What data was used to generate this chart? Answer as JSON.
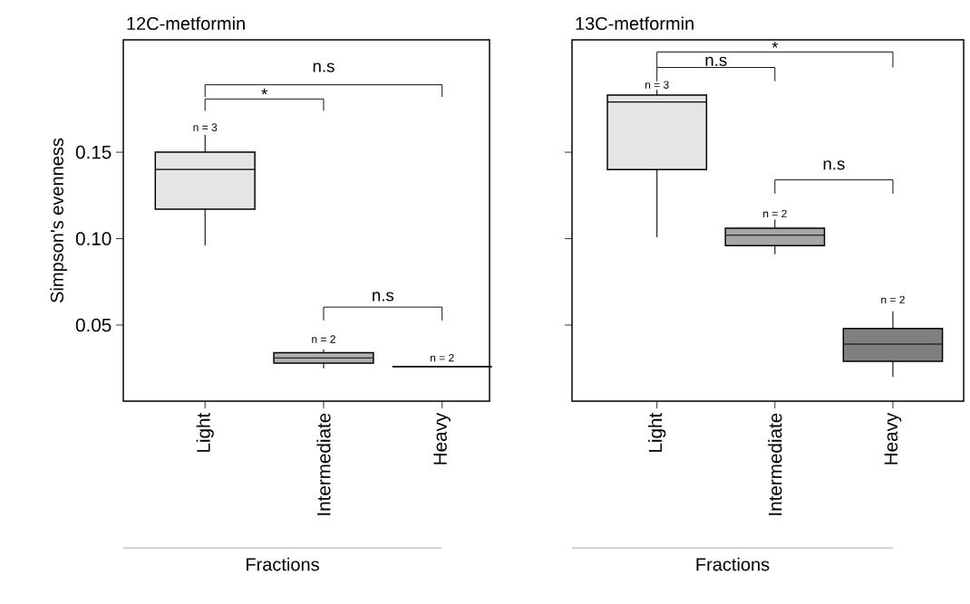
{
  "chart_data": [
    {
      "type": "box",
      "title": "12C-metformin",
      "ylabel": "Simpson's evenness",
      "xlabel": "Fractions",
      "categories": [
        "Light",
        "Intermediate",
        "Heavy"
      ],
      "colors": [
        "#e5e5e5",
        "#b0b0b0",
        "#000000"
      ],
      "boxes": [
        {
          "low": 0.096,
          "q1": 0.117,
          "median": 0.14,
          "q3": 0.15,
          "high": 0.16
        },
        {
          "low": 0.025,
          "q1": 0.028,
          "median": 0.031,
          "q3": 0.034,
          "high": 0.036
        },
        {
          "low": 0.026,
          "q1": 0.026,
          "median": 0.026,
          "q3": 0.026,
          "high": 0.026
        }
      ],
      "ylim": [
        0.006,
        0.215
      ],
      "yticks": [
        0.05,
        {
          "value": 0.1,
          "label": "0.10"
        },
        0.15
      ],
      "annotations": [
        "n.s",
        "*",
        "n.s",
        "n = 3",
        "n = 2",
        "n = 2"
      ]
    },
    {
      "type": "box",
      "title": "13C-metformin",
      "xlabel": "Fractions",
      "categories": [
        "Light",
        "Intermediate",
        "Heavy"
      ],
      "colors": [
        "#e5e5e5",
        "#a6a6a6",
        "#808080"
      ],
      "boxes": [
        {
          "low": 0.101,
          "q1": 0.14,
          "median": 0.179,
          "q3": 0.183,
          "high": 0.186
        },
        {
          "low": 0.091,
          "q1": 0.096,
          "median": 0.102,
          "q3": 0.106,
          "high": 0.111
        },
        {
          "low": 0.02,
          "q1": 0.029,
          "median": 0.039,
          "q3": 0.048,
          "high": 0.058
        }
      ],
      "ylim": [
        0.006,
        0.215
      ],
      "yticks": [
        0.05,
        0.1,
        0.15
      ],
      "tick_labels": "x",
      "annotations": [
        "*",
        "n.s",
        "n.s",
        "n = 3",
        "n = 2",
        "n = 2"
      ]
    }
  ]
}
